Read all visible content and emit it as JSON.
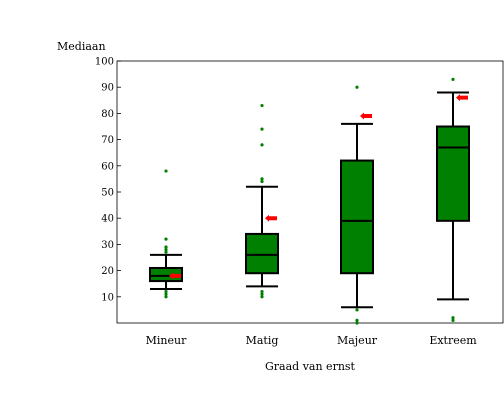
{
  "chart_data": {
    "type": "box",
    "ylabel": "Mediaan",
    "xlabel": "Graad van ernst",
    "ylim": [
      0,
      100
    ],
    "yticks": [
      10,
      20,
      30,
      40,
      50,
      60,
      70,
      80,
      90,
      100
    ],
    "grid": false,
    "categories": [
      "Mineur",
      "Matig",
      "Majeur",
      "Extreem"
    ],
    "boxes": [
      {
        "category": "Mineur",
        "whisker_low": 13,
        "q1": 16,
        "median": 18,
        "q3": 21,
        "whisker_high": 26,
        "mean": 18,
        "outliers": [
          10,
          11,
          12,
          27,
          28,
          29,
          32,
          58
        ]
      },
      {
        "category": "Matig",
        "whisker_low": 14,
        "q1": 19,
        "median": 26,
        "q3": 34,
        "whisker_high": 52,
        "mean": 40,
        "outliers": [
          10,
          11,
          12,
          54,
          55,
          68,
          74,
          83
        ]
      },
      {
        "category": "Majeur",
        "whisker_low": 6,
        "q1": 19,
        "median": 39,
        "q3": 62,
        "whisker_high": 76,
        "mean": 79,
        "outliers": [
          0,
          1,
          5,
          90
        ]
      },
      {
        "category": "Extreem",
        "whisker_low": 9,
        "q1": 39,
        "median": 67,
        "q3": 75,
        "whisker_high": 88,
        "mean": 86,
        "outliers": [
          1,
          2,
          93
        ]
      }
    ],
    "colors": {
      "box_fill": "#008000",
      "outline": "#000000",
      "outlier": "#008000",
      "mean_marker": "#ff0000"
    }
  }
}
